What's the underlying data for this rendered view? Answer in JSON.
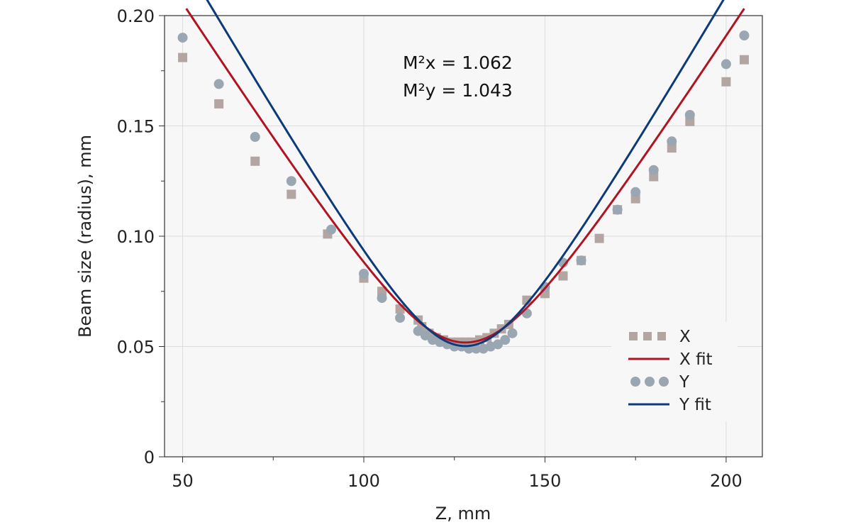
{
  "chart_data": {
    "type": "scatter",
    "xlabel": "Z, mm",
    "ylabel": "Beam size (radius), mm",
    "xlim": [
      45,
      210
    ],
    "ylim": [
      0,
      0.2
    ],
    "x_ticks": [
      50,
      100,
      150,
      200
    ],
    "x_tick_labels": [
      "50",
      "100",
      "150",
      "200"
    ],
    "y_ticks": [
      0,
      0.05,
      0.1,
      0.15,
      0.2
    ],
    "y_tick_labels": [
      "0",
      "0.05",
      "0.10",
      "0.15",
      "0.20"
    ],
    "grid": true,
    "legend_position": "lower-right",
    "annotations": [
      "M²x = 1.062",
      "M²y = 1.043"
    ],
    "series": [
      {
        "name": "X",
        "kind": "markers",
        "marker": "square",
        "color": "#b3a6a2",
        "x": [
          50,
          60,
          70,
          80,
          90,
          100,
          105,
          110,
          115,
          116,
          118,
          120,
          122,
          124,
          126,
          128,
          130,
          132,
          134,
          136,
          138,
          140,
          145,
          150,
          155,
          160,
          165,
          170,
          175,
          180,
          185,
          190,
          200,
          205
        ],
        "y": [
          0.181,
          0.16,
          0.134,
          0.119,
          0.101,
          0.081,
          0.075,
          0.067,
          0.062,
          0.059,
          0.056,
          0.054,
          0.053,
          0.052,
          0.052,
          0.052,
          0.052,
          0.053,
          0.054,
          0.056,
          0.058,
          0.06,
          0.071,
          0.074,
          0.082,
          0.089,
          0.099,
          0.112,
          0.117,
          0.127,
          0.14,
          0.152,
          0.17,
          0.18
        ]
      },
      {
        "name": "X fit",
        "kind": "line",
        "color": "#b01423",
        "x_start": 51,
        "x_end": 205,
        "waist_z": 128,
        "waist_radius": 0.0518,
        "rayleigh_range": 20.3
      },
      {
        "name": "Y",
        "kind": "markers",
        "marker": "circle",
        "color": "#9ba6b3",
        "x": [
          50,
          60,
          70,
          80,
          91,
          100,
          105,
          110,
          115,
          117,
          119,
          121,
          123,
          125,
          127,
          129,
          131,
          133,
          135,
          137,
          139,
          141,
          145,
          150,
          155,
          160,
          170,
          175,
          180,
          185,
          190,
          200,
          205
        ],
        "y": [
          0.19,
          0.169,
          0.145,
          0.125,
          0.103,
          0.083,
          0.072,
          0.063,
          0.057,
          0.055,
          0.053,
          0.052,
          0.051,
          0.05,
          0.05,
          0.049,
          0.049,
          0.049,
          0.05,
          0.051,
          0.053,
          0.056,
          0.065,
          0.077,
          0.088,
          0.089,
          0.112,
          0.12,
          0.13,
          0.143,
          0.155,
          0.178,
          0.191
        ]
      },
      {
        "name": "Y fit",
        "kind": "line",
        "color": "#0d3a78",
        "x_start": 51,
        "x_end": 205,
        "waist_z": 128,
        "waist_radius": 0.0502,
        "rayleigh_range": 17.8
      }
    ]
  }
}
